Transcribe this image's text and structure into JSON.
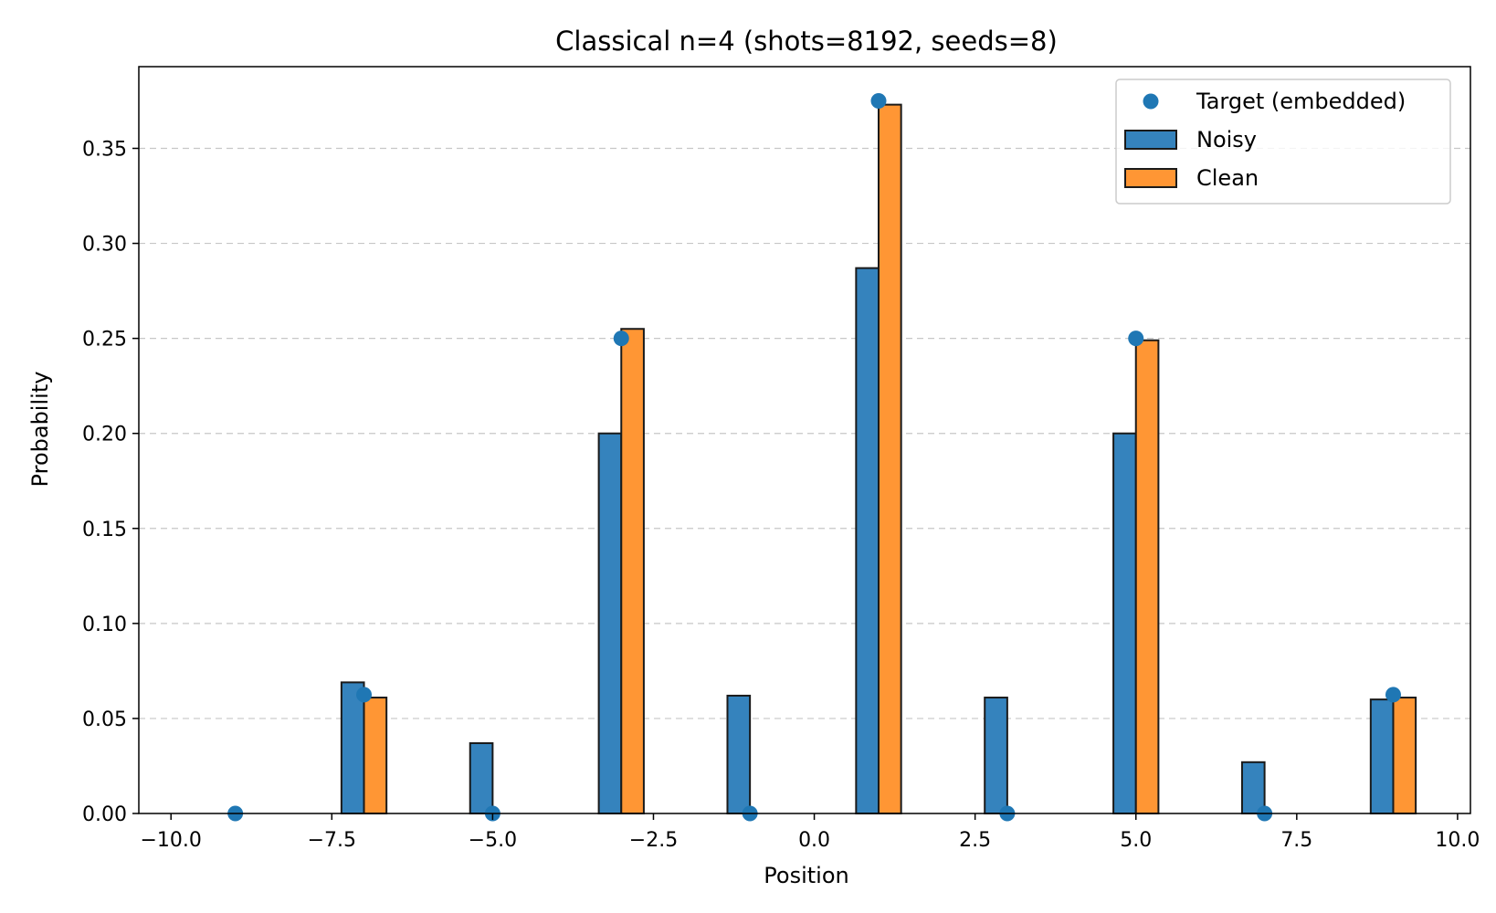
{
  "chart_data": {
    "type": "bar",
    "title": "Classical n=4 (shots=8192, seeds=8)",
    "xlabel": "Position",
    "ylabel": "Probability",
    "xlim": [
      -10.5,
      10.2
    ],
    "ylim": [
      0,
      0.393
    ],
    "xticks": [
      -10,
      -7.5,
      -5,
      -2.5,
      0,
      2.5,
      5,
      7.5,
      10
    ],
    "xtick_labels": [
      "−10.0",
      "−7.5",
      "−5.0",
      "−2.5",
      "0.0",
      "2.5",
      "5.0",
      "7.5",
      "10.0"
    ],
    "yticks": [
      0,
      0.05,
      0.1,
      0.15,
      0.2,
      0.25,
      0.3,
      0.35
    ],
    "ytick_labels": [
      "0.00",
      "0.05",
      "0.10",
      "0.15",
      "0.20",
      "0.25",
      "0.30",
      "0.35"
    ],
    "grid": "y-dashed",
    "legend_position": "top-right",
    "bar_width": 0.35,
    "positions": [
      -9,
      -7,
      -5,
      -3,
      -1,
      1,
      3,
      5,
      7,
      9
    ],
    "series": [
      {
        "name": "Noisy",
        "kind": "bar",
        "offset": -0.175,
        "color": "#3583bd",
        "values": [
          0.0,
          0.069,
          0.037,
          0.2,
          0.062,
          0.287,
          0.061,
          0.2,
          0.027,
          0.06
        ]
      },
      {
        "name": "Clean",
        "kind": "bar",
        "offset": 0.175,
        "color": "#ff9634",
        "values": [
          0.0,
          0.061,
          0.0,
          0.255,
          0.0,
          0.373,
          0.0,
          0.249,
          0.0,
          0.061
        ]
      },
      {
        "name": "Target (embedded)",
        "kind": "scatter",
        "offset": 0,
        "color": "#1f77b4",
        "values": [
          0.0,
          0.0625,
          0.0,
          0.25,
          0.0,
          0.375,
          0.0,
          0.25,
          0.0,
          0.0625
        ]
      }
    ],
    "legend_order": [
      "Target (embedded)",
      "Noisy",
      "Clean"
    ]
  }
}
